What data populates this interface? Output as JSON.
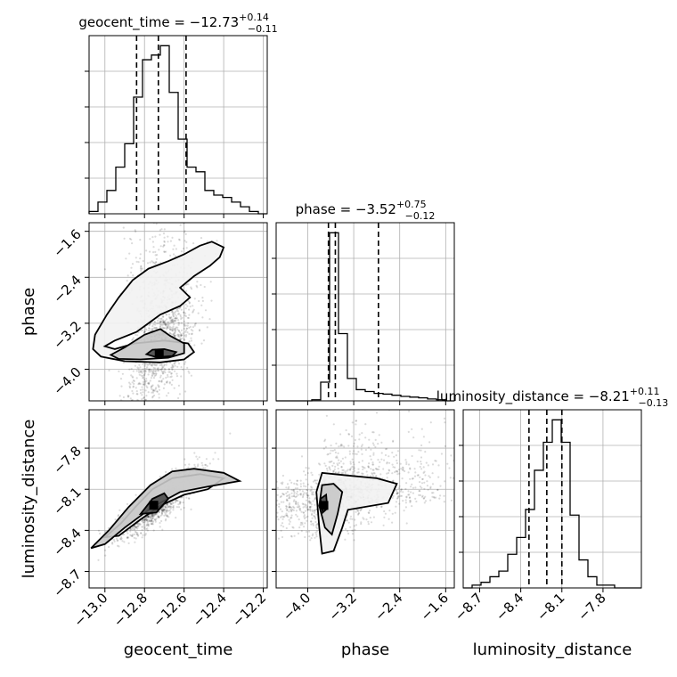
{
  "chart_data": {
    "type": "corner",
    "parameters": [
      "geocent_time",
      "phase",
      "luminosity_distance"
    ],
    "axis_labels": {
      "x": [
        "geocent_time",
        "phase",
        "luminosity_distance"
      ],
      "y": [
        "",
        "phase",
        "luminosity_distance"
      ]
    },
    "titles": [
      {
        "name": "geocent_time",
        "value": "−12.73",
        "plus": "+0.14",
        "minus": "−0.11"
      },
      {
        "name": "phase",
        "value": "−3.52",
        "plus": "+0.75",
        "minus": "−0.12"
      },
      {
        "name": "luminosity_distance",
        "value": "−8.21",
        "plus": "+0.11",
        "minus": "−0.13"
      }
    ],
    "ranges": [
      [
        -13.08,
        -12.18
      ],
      [
        -4.55,
        -1.45
      ],
      [
        -8.82,
        -7.52
      ]
    ],
    "ticks": [
      {
        "values": [
          -13.0,
          -12.8,
          -12.6,
          -12.4,
          -12.2
        ],
        "labels": [
          "−13.0",
          "−12.8",
          "−12.6",
          "−12.4",
          "−12.2"
        ]
      },
      {
        "values": [
          -4.0,
          -3.2,
          -2.4,
          -1.6
        ],
        "labels": [
          "−4.0",
          "−3.2",
          "−2.4",
          "−1.6"
        ]
      },
      {
        "values": [
          -8.7,
          -8.4,
          -8.1,
          -7.8
        ],
        "labels": [
          "−8.7",
          "−8.4",
          "−8.1",
          "−7.8"
        ]
      }
    ],
    "quantiles": [
      [
        -12.84,
        -12.73,
        -12.59
      ],
      [
        -3.64,
        -3.52,
        -2.77
      ],
      [
        -8.34,
        -8.21,
        -8.1
      ]
    ],
    "histograms": [
      {
        "edges": [
          -13.08,
          -13.035,
          -12.99,
          -12.945,
          -12.9,
          -12.855,
          -12.81,
          -12.765,
          -12.72,
          -12.675,
          -12.63,
          -12.585,
          -12.54,
          -12.495,
          -12.45,
          -12.405,
          -12.36,
          -12.315,
          -12.27,
          -12.225,
          -12.18
        ],
        "values": [
          0.5,
          2.5,
          5,
          10,
          15,
          25,
          33,
          34,
          36,
          26,
          16,
          10,
          9,
          5,
          4,
          3.5,
          2.5,
          1.5,
          0.5,
          0
        ]
      },
      {
        "edges": [
          -4.55,
          -4.395,
          -4.24,
          -4.085,
          -3.93,
          -3.775,
          -3.62,
          -3.465,
          -3.31,
          -3.155,
          -3,
          -2.845,
          -2.69,
          -2.535,
          -2.38,
          -2.225,
          -2.07,
          -1.915,
          -1.76,
          -1.605,
          -1.45
        ],
        "values": [
          0,
          0,
          0,
          0,
          0.3,
          5,
          45,
          18,
          6,
          3,
          2.5,
          2,
          1.8,
          1.5,
          1.2,
          1,
          0.8,
          0.5,
          0.3,
          0
        ]
      },
      {
        "edges": [
          -8.82,
          -8.755,
          -8.69,
          -8.625,
          -8.56,
          -8.495,
          -8.43,
          -8.365,
          -8.3,
          -8.235,
          -8.17,
          -8.105,
          -8.04,
          -7.975,
          -7.91,
          -7.845,
          -7.78,
          -7.715,
          -7.65,
          -7.585,
          -7.52
        ],
        "values": [
          0,
          0.5,
          1,
          2,
          3,
          6,
          9,
          14,
          21,
          26,
          30,
          26,
          13,
          5,
          2,
          0.5,
          0.5,
          0,
          0,
          0
        ]
      }
    ],
    "pairs": [
      {
        "x": 0,
        "y": 1,
        "center": [
          -12.72,
          -3.72
        ],
        "sx": 0.09,
        "sy": 0.55,
        "rho": 0.6,
        "skew": 0.45,
        "contours": [
          [
            [
              -13.0,
              -3.6
            ],
            [
              -12.95,
              -3.5
            ],
            [
              -12.84,
              -3.35
            ],
            [
              -12.78,
              -3.2
            ],
            [
              -12.72,
              -3.05
            ],
            [
              -12.62,
              -2.9
            ],
            [
              -12.57,
              -2.75
            ],
            [
              -12.62,
              -2.58
            ],
            [
              -12.55,
              -2.38
            ],
            [
              -12.47,
              -2.2
            ],
            [
              -12.42,
              -2.05
            ],
            [
              -12.4,
              -1.88
            ],
            [
              -12.46,
              -1.78
            ],
            [
              -12.52,
              -1.85
            ],
            [
              -12.6,
              -2.0
            ],
            [
              -12.68,
              -2.12
            ],
            [
              -12.78,
              -2.25
            ],
            [
              -12.86,
              -2.45
            ],
            [
              -12.93,
              -2.75
            ],
            [
              -12.99,
              -3.05
            ],
            [
              -13.05,
              -3.4
            ],
            [
              -13.06,
              -3.65
            ],
            [
              -13.02,
              -3.78
            ],
            [
              -12.9,
              -3.86
            ],
            [
              -12.72,
              -3.88
            ],
            [
              -12.6,
              -3.83
            ],
            [
              -12.55,
              -3.7
            ],
            [
              -12.58,
              -3.55
            ],
            [
              -12.7,
              -3.5
            ],
            [
              -12.85,
              -3.55
            ],
            [
              -12.95,
              -3.65
            ],
            [
              -13.0,
              -3.6
            ]
          ],
          [
            [
              -12.97,
              -3.75
            ],
            [
              -12.9,
              -3.62
            ],
            [
              -12.8,
              -3.4
            ],
            [
              -12.72,
              -3.3
            ],
            [
              -12.67,
              -3.42
            ],
            [
              -12.6,
              -3.55
            ],
            [
              -12.6,
              -3.72
            ],
            [
              -12.68,
              -3.8
            ],
            [
              -12.82,
              -3.83
            ],
            [
              -12.93,
              -3.82
            ],
            [
              -12.97,
              -3.75
            ]
          ],
          [
            [
              -12.79,
              -3.74
            ],
            [
              -12.76,
              -3.66
            ],
            [
              -12.7,
              -3.65
            ],
            [
              -12.64,
              -3.7
            ],
            [
              -12.66,
              -3.77
            ],
            [
              -12.74,
              -3.79
            ],
            [
              -12.79,
              -3.74
            ]
          ]
        ]
      },
      {
        "x": 0,
        "y": 2,
        "center": [
          -12.73,
          -8.2
        ],
        "sx": 0.1,
        "sy": 0.12,
        "rho": 0.85,
        "skew": 0.0,
        "contours": [
          [
            [
              -13.0,
              -8.45
            ],
            [
              -12.92,
              -8.35
            ],
            [
              -12.84,
              -8.22
            ],
            [
              -12.76,
              -8.1
            ],
            [
              -12.66,
              -8.02
            ],
            [
              -12.52,
              -7.99
            ],
            [
              -12.4,
              -8.02
            ],
            [
              -12.48,
              -8.1
            ],
            [
              -12.6,
              -8.14
            ],
            [
              -12.72,
              -8.22
            ],
            [
              -12.82,
              -8.32
            ],
            [
              -12.93,
              -8.44
            ],
            [
              -13.0,
              -8.45
            ]
          ],
          [
            [
              -13.07,
              -8.53
            ],
            [
              -12.98,
              -8.4
            ],
            [
              -12.88,
              -8.23
            ],
            [
              -12.77,
              -8.07
            ],
            [
              -12.66,
              -7.97
            ],
            [
              -12.55,
              -7.95
            ],
            [
              -12.4,
              -7.98
            ],
            [
              -12.32,
              -8.04
            ],
            [
              -12.48,
              -8.08
            ],
            [
              -12.62,
              -8.12
            ],
            [
              -12.76,
              -8.23
            ],
            [
              -12.9,
              -8.38
            ],
            [
              -13.0,
              -8.5
            ],
            [
              -13.07,
              -8.53
            ]
          ],
          [
            [
              -12.82,
              -8.28
            ],
            [
              -12.76,
              -8.17
            ],
            [
              -12.7,
              -8.13
            ],
            [
              -12.68,
              -8.17
            ],
            [
              -12.74,
              -8.27
            ],
            [
              -12.82,
              -8.28
            ]
          ]
        ]
      },
      {
        "x": 1,
        "y": 2,
        "center": [
          -3.72,
          -8.2
        ],
        "sx": 0.55,
        "sy": 0.12,
        "rho": 0.1,
        "skew": 0.45,
        "contours": [
          [
            [
              -3.8,
              -8.38
            ],
            [
              -3.85,
              -8.12
            ],
            [
              -3.75,
              -7.98
            ],
            [
              -3.3,
              -8.0
            ],
            [
              -2.8,
              -8.02
            ],
            [
              -2.45,
              -8.06
            ],
            [
              -2.6,
              -8.2
            ],
            [
              -3.3,
              -8.25
            ],
            [
              -3.4,
              -8.38
            ],
            [
              -3.55,
              -8.55
            ],
            [
              -3.75,
              -8.57
            ],
            [
              -3.8,
              -8.38
            ]
          ],
          [
            [
              -3.7,
              -8.38
            ],
            [
              -3.8,
              -8.22
            ],
            [
              -3.75,
              -8.07
            ],
            [
              -3.55,
              -8.06
            ],
            [
              -3.4,
              -8.12
            ],
            [
              -3.48,
              -8.28
            ],
            [
              -3.58,
              -8.43
            ],
            [
              -3.7,
              -8.38
            ]
          ],
          [
            [
              -3.74,
              -8.27
            ],
            [
              -3.78,
              -8.17
            ],
            [
              -3.68,
              -8.14
            ],
            [
              -3.66,
              -8.24
            ],
            [
              -3.74,
              -8.27
            ]
          ]
        ]
      }
    ],
    "grid": true
  }
}
